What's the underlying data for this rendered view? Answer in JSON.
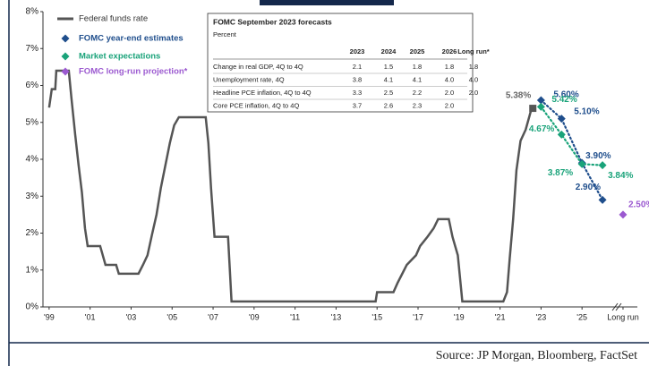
{
  "chart_data": {
    "type": "line",
    "source": "Source: JP Morgan, Bloomberg, FactSet",
    "xlim": [
      1998.7,
      2027.7
    ],
    "xticks": [
      {
        "value": 1999,
        "label": "'99"
      },
      {
        "value": 2001,
        "label": "'01"
      },
      {
        "value": 2003,
        "label": "'03"
      },
      {
        "value": 2005,
        "label": "'05"
      },
      {
        "value": 2007,
        "label": "'07"
      },
      {
        "value": 2009,
        "label": "'09"
      },
      {
        "value": 2011,
        "label": "'11"
      },
      {
        "value": 2013,
        "label": "'13"
      },
      {
        "value": 2015,
        "label": "'15"
      },
      {
        "value": 2017,
        "label": "'17"
      },
      {
        "value": 2019,
        "label": "'19"
      },
      {
        "value": 2021,
        "label": "'21"
      },
      {
        "value": 2023,
        "label": "'23"
      },
      {
        "value": 2025,
        "label": "'25"
      },
      {
        "value": 2027,
        "label": "Long run"
      }
    ],
    "ylim": [
      0,
      8
    ],
    "yticks": [
      {
        "value": 0,
        "label": "0%"
      },
      {
        "value": 1,
        "label": "1%"
      },
      {
        "value": 2,
        "label": "2%"
      },
      {
        "value": 3,
        "label": "3%"
      },
      {
        "value": 4,
        "label": "4%"
      },
      {
        "value": 5,
        "label": "5%"
      },
      {
        "value": 6,
        "label": "6%"
      },
      {
        "value": 7,
        "label": "7%"
      },
      {
        "value": 8,
        "label": "8%"
      }
    ],
    "series": [
      {
        "name": "Federal funds rate",
        "color": "#555555",
        "x": [
          1999.0,
          1999.13,
          1999.3,
          1999.35,
          1999.96,
          2000.09,
          2000.27,
          2000.44,
          2000.6,
          2000.75,
          2000.88,
          2001.49,
          2001.75,
          2002.27,
          2002.4,
          2003.36,
          2003.58,
          2003.8,
          2004.02,
          2004.24,
          2004.45,
          2004.67,
          2004.89,
          2005.1,
          2005.33,
          2006.64,
          2006.77,
          2006.9,
          2007.07,
          2007.73,
          2007.9,
          2014.93,
          2015.0,
          2015.8,
          2016.0,
          2016.23,
          2016.45,
          2016.9,
          2017.1,
          2017.46,
          2017.76,
          2017.98,
          2018.5,
          2018.68,
          2018.94,
          2019.16,
          2021.16,
          2021.34,
          2021.47,
          2021.64,
          2021.8,
          2022.0,
          2022.25,
          2022.5,
          2022.6
        ],
        "values": [
          5.4,
          5.9,
          5.9,
          6.4,
          6.4,
          5.65,
          4.68,
          3.83,
          3.1,
          2.13,
          1.65,
          1.65,
          1.14,
          1.14,
          0.9,
          0.9,
          1.14,
          1.4,
          1.96,
          2.5,
          3.22,
          3.83,
          4.44,
          4.92,
          5.14,
          5.14,
          4.44,
          3.22,
          1.9,
          1.9,
          0.15,
          0.15,
          0.4,
          0.4,
          0.65,
          0.9,
          1.14,
          1.4,
          1.65,
          1.9,
          2.13,
          2.38,
          2.38,
          1.9,
          1.4,
          0.15,
          0.15,
          0.4,
          1.3,
          2.38,
          3.7,
          4.5,
          4.8,
          5.3,
          5.38
        ],
        "value_labels": [
          null,
          null,
          null,
          null,
          null,
          null,
          null,
          null,
          null,
          null,
          null,
          null,
          null,
          null,
          null,
          null,
          null,
          null,
          null,
          null,
          null,
          null,
          null,
          null,
          null,
          null,
          null,
          null,
          null,
          null,
          null,
          null,
          null,
          null,
          null,
          null,
          null,
          null,
          null,
          null,
          null,
          null,
          null,
          null,
          null,
          null,
          null,
          null,
          null,
          null,
          null,
          null,
          null,
          null,
          "5.38%"
        ]
      },
      {
        "name": "FOMC year-end estimates",
        "color": "#1f4e8c",
        "x": [
          2023,
          2024,
          2025,
          2026
        ],
        "values": [
          5.6,
          5.1,
          3.9,
          2.9
        ],
        "value_labels": [
          "5.60%",
          "5.10%",
          "3.90%",
          "2.90%"
        ]
      },
      {
        "name": "Market expectations",
        "color": "#1aa37a",
        "x": [
          2023,
          2024,
          2025,
          2026
        ],
        "values": [
          5.42,
          4.67,
          3.87,
          3.84
        ],
        "value_labels": [
          "5.42%",
          "4.67%",
          "3.87%",
          "3.84%"
        ]
      },
      {
        "name": "FOMC long-run projection*",
        "color": "#9b59d0",
        "x": [
          2027
        ],
        "values": [
          2.5
        ],
        "value_labels": [
          "2.50%"
        ]
      }
    ],
    "table": {
      "title": "FOMC September 2023 forecasts",
      "subtitle": "Percent",
      "columns": [
        "2023",
        "2024",
        "2025",
        "2026",
        "Long run*"
      ],
      "rows": [
        {
          "label": "Change in real GDP, 4Q to 4Q",
          "values": [
            "2.1",
            "1.5",
            "1.8",
            "1.8",
            "1.8"
          ]
        },
        {
          "label": "Unemployment rate, 4Q",
          "values": [
            "3.8",
            "4.1",
            "4.1",
            "4.0",
            "4.0"
          ]
        },
        {
          "label": "Headline PCE inflation, 4Q to 4Q",
          "values": [
            "3.3",
            "2.5",
            "2.2",
            "2.0",
            "2.0"
          ]
        },
        {
          "label": "Core PCE inflation, 4Q to 4Q",
          "values": [
            "3.7",
            "2.6",
            "2.3",
            "2.0",
            null
          ]
        }
      ]
    }
  }
}
